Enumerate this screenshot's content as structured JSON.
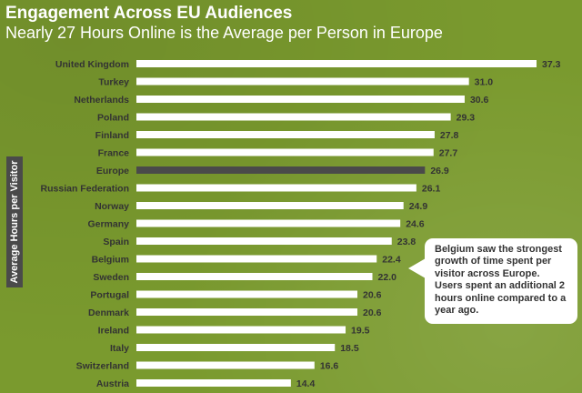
{
  "header": {
    "title": "Engagement Across EU Audiences",
    "subtitle": "Nearly 27 Hours Online is the Average per Person in Europe"
  },
  "colors": {
    "background": "#7a9a2e",
    "bar": "#ffffff",
    "highlight_bar": "#4a4a4a",
    "label_text": "#333333"
  },
  "callout": {
    "text": "Belgium saw the strongest growth of time spent per visitor across Europe. Users spent an additional 2 hours online compared to a year ago."
  },
  "chart_data": {
    "type": "bar",
    "orientation": "horizontal",
    "title": "Engagement Across EU Audiences",
    "subtitle": "Nearly 27 Hours Online is the Average per Person in Europe",
    "ylabel": "Average Hours per Visitor",
    "xlabel": "",
    "grid": false,
    "legend": "none",
    "highlight": "Europe",
    "categories": [
      "United Kingdom",
      "Turkey",
      "Netherlands",
      "Poland",
      "Finland",
      "France",
      "Europe",
      "Russian Federation",
      "Norway",
      "Germany",
      "Spain",
      "Belgium",
      "Sweden",
      "Portugal",
      "Denmark",
      "Ireland",
      "Italy",
      "Switzerland",
      "Austria"
    ],
    "values": [
      37.3,
      31.0,
      30.6,
      29.3,
      27.8,
      27.7,
      26.9,
      26.1,
      24.9,
      24.6,
      23.8,
      22.4,
      22.0,
      20.6,
      20.6,
      19.5,
      18.5,
      16.6,
      14.4
    ],
    "value_labels": [
      "37.3",
      "31.0",
      "30.6",
      "29.3",
      "27.8",
      "27.7",
      "26.9",
      "26.1",
      "24.9",
      "24.6",
      "23.8",
      "22.4",
      "22.0",
      "20.6",
      "20.6",
      "19.5",
      "18.5",
      "16.6",
      "14.4"
    ],
    "xlim": [
      0,
      37.3
    ]
  }
}
